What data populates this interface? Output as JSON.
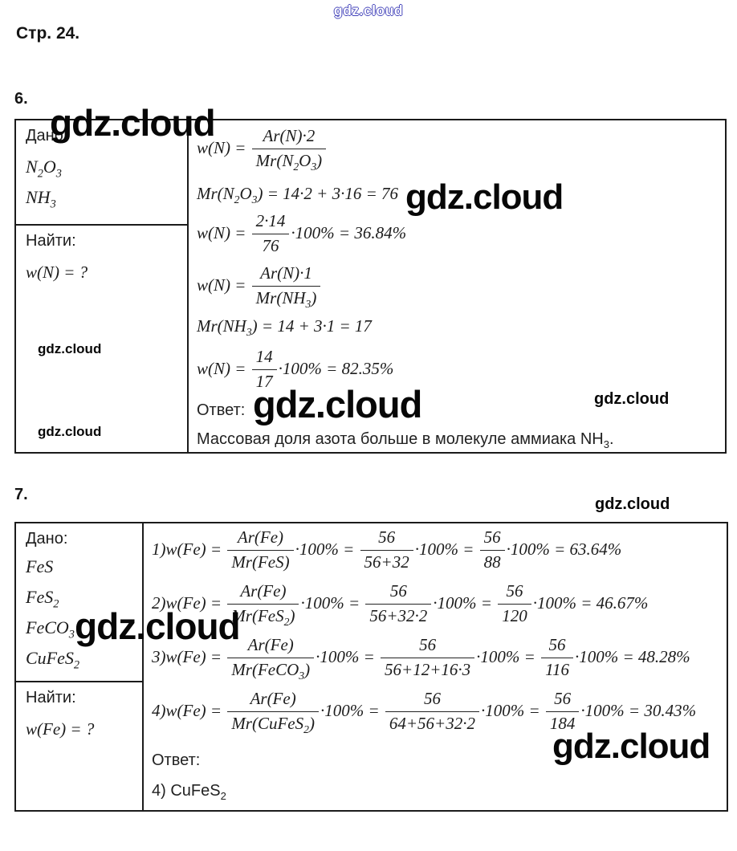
{
  "page": {
    "heading": "Стр. 24."
  },
  "watermark": {
    "text": "gdz.cloud",
    "blue": "#4545bb",
    "black": "#070707"
  },
  "problem6": {
    "label": "6.",
    "given_label": "Дано:",
    "given": [
      "N_2_O_3_",
      "NH_3_"
    ],
    "find_label": "Найти:",
    "find": "w(N) = ?",
    "equations": [
      [
        "w(N) = ",
        {
          "f": [
            "Ar(N)·2",
            "Mr(N_2_O_3_)"
          ]
        }
      ],
      [
        "Mr(N_2_O_3_) = 14·2 + 3·16 = 76"
      ],
      [
        "w(N) = ",
        {
          "f": [
            "2·14",
            "76"
          ]
        },
        "·100% = 36.84%"
      ],
      [
        "w(N) = ",
        {
          "f": [
            "Ar(N)·1",
            "Mr(NH_3_)"
          ]
        }
      ],
      [
        "Mr(NH_3_) = 14 + 3·1 = 17"
      ],
      [
        "w(N) = ",
        {
          "f": [
            "14",
            "17"
          ]
        },
        "·100% = 82.35%"
      ]
    ],
    "answer_label": "Ответ:",
    "answer": "Массовая доля азота больше в молекуле аммиака NH_3_."
  },
  "problem7": {
    "label": "7.",
    "given_label": "Дано:",
    "given": [
      "FeS",
      "FeS_2_",
      "FeCO_3_",
      "CuFeS_2_"
    ],
    "find_label": "Найти:",
    "find": "w(Fe) = ?",
    "equations": [
      [
        "1)w(Fe) = ",
        {
          "f": [
            "Ar(Fe)",
            "Mr(FeS)"
          ]
        },
        "·100% = ",
        {
          "f": [
            "56",
            "56+32"
          ]
        },
        "·100% = ",
        {
          "f": [
            "56",
            "88"
          ]
        },
        "·100% = 63.64%"
      ],
      [
        "2)w(Fe) = ",
        {
          "f": [
            "Ar(Fe)",
            "Mr(FeS_2_)"
          ]
        },
        "·100% = ",
        {
          "f": [
            "56",
            "56+32·2"
          ]
        },
        "·100% = ",
        {
          "f": [
            "56",
            "120"
          ]
        },
        "·100% = 46.67%"
      ],
      [
        "3)w(Fe) = ",
        {
          "f": [
            "Ar(Fe)",
            "Mr(FeCO_3_)"
          ]
        },
        "·100% = ",
        {
          "f": [
            "56",
            "56+12+16·3"
          ]
        },
        "·100% = ",
        {
          "f": [
            "56",
            "116"
          ]
        },
        "·100% = 48.28%"
      ],
      [
        "4)w(Fe) = ",
        {
          "f": [
            "Ar(Fe)",
            "Mr(CuFeS_2_)"
          ]
        },
        "·100% = ",
        {
          "f": [
            "56",
            "64+56+32·2"
          ]
        },
        "·100% = ",
        {
          "f": [
            "56",
            "184"
          ]
        },
        "·100% = 30.43%"
      ]
    ],
    "answer_label": "Ответ:",
    "answer": "4) CuFeS_2_"
  }
}
